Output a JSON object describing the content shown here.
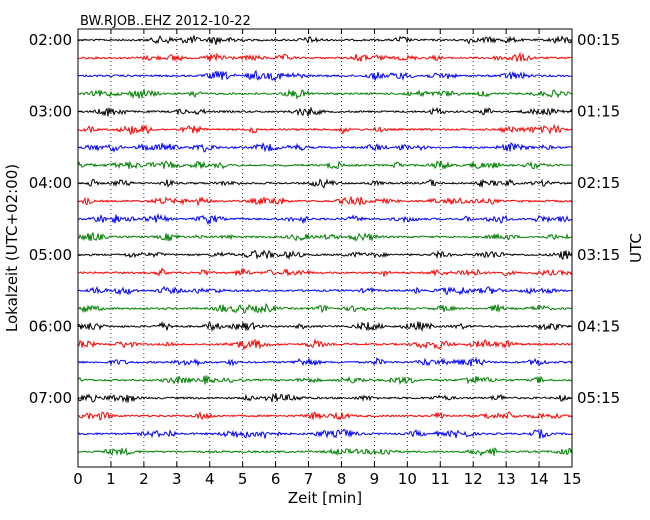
{
  "chart_data": {
    "type": "line",
    "title": "BW.RJOB..EHZ 2012-10-22",
    "xlabel": "Zeit  [min]",
    "ylabel": "Lokalzeit (UTC+02:00)",
    "ylabel_right": "UTC",
    "xlim": [
      0,
      15
    ],
    "x_ticks": [
      "0",
      "1",
      "2",
      "3",
      "4",
      "5",
      "6",
      "7",
      "8",
      "9",
      "10",
      "11",
      "12",
      "13",
      "14",
      "15"
    ],
    "vertical_grid": "dotted",
    "trace_colors": [
      "#000000",
      "#ff0000",
      "#0000ff",
      "#008000"
    ],
    "trace_count": 24,
    "left_labels": [
      {
        "trace": 0,
        "text": "02:00"
      },
      {
        "trace": 4,
        "text": "03:00"
      },
      {
        "trace": 8,
        "text": "04:00"
      },
      {
        "trace": 12,
        "text": "05:00"
      },
      {
        "trace": 16,
        "text": "06:00"
      },
      {
        "trace": 20,
        "text": "07:00"
      }
    ],
    "right_labels": [
      {
        "trace": 0,
        "text": "00:15"
      },
      {
        "trace": 4,
        "text": "01:15"
      },
      {
        "trace": 8,
        "text": "02:15"
      },
      {
        "trace": 12,
        "text": "03:15"
      },
      {
        "trace": 16,
        "text": "04:15"
      },
      {
        "trace": 20,
        "text": "05:15"
      }
    ]
  }
}
